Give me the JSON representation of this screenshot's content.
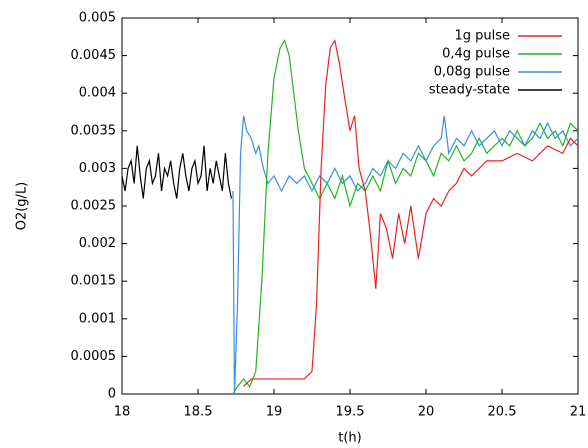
{
  "chart_data": {
    "type": "line",
    "xlabel": "t(h)",
    "ylabel": "O2(g/L)",
    "xlim": [
      18,
      21
    ],
    "xticks": [
      18,
      18.5,
      19,
      19.5,
      20,
      20.5,
      21
    ],
    "ylim": [
      0,
      0.005
    ],
    "yticks": [
      0,
      0.0005,
      0.001,
      0.0015,
      0.002,
      0.0025,
      0.003,
      0.0035,
      0.004,
      0.0045,
      0.005
    ],
    "legend": "top-right",
    "series": [
      {
        "name": "1g pulse",
        "color": "#e8231f",
        "x": [
          18.8,
          18.85,
          18.9,
          19,
          19.1,
          19.2,
          19.25,
          19.28,
          19.31,
          19.34,
          19.37,
          19.4,
          19.43,
          19.46,
          19.5,
          19.53,
          19.56,
          19.6,
          19.63,
          19.67,
          19.7,
          19.74,
          19.78,
          19.82,
          19.86,
          19.9,
          19.95,
          20,
          20.05,
          20.1,
          20.15,
          20.2,
          20.25,
          20.3,
          20.35,
          20.4,
          20.5,
          20.6,
          20.7,
          20.8,
          20.9,
          20.95,
          21
        ],
        "values": [
          0.0001,
          0.0002,
          0.0002,
          0.0002,
          0.0002,
          0.0002,
          0.0003,
          0.0012,
          0.003,
          0.0041,
          0.0046,
          0.0047,
          0.0044,
          0.004,
          0.0035,
          0.0037,
          0.003,
          0.0027,
          0.0022,
          0.0014,
          0.0024,
          0.0022,
          0.0018,
          0.0024,
          0.002,
          0.0025,
          0.0018,
          0.0024,
          0.0026,
          0.0025,
          0.0027,
          0.0028,
          0.003,
          0.0029,
          0.003,
          0.0031,
          0.0031,
          0.0032,
          0.0031,
          0.0033,
          0.0032,
          0.0034,
          0.0033
        ]
      },
      {
        "name": "0,4g pulse",
        "color": "#22b522",
        "x": [
          18.73,
          18.76,
          18.8,
          18.84,
          18.88,
          18.92,
          18.96,
          19,
          19.04,
          19.07,
          19.1,
          19.13,
          19.16,
          19.2,
          19.25,
          19.3,
          19.35,
          19.4,
          19.45,
          19.5,
          19.55,
          19.6,
          19.65,
          19.7,
          19.75,
          19.8,
          19.85,
          19.9,
          19.95,
          20,
          20.05,
          20.1,
          20.15,
          20.2,
          20.25,
          20.3,
          20.35,
          20.4,
          20.45,
          20.5,
          20.55,
          20.6,
          20.65,
          20.7,
          20.75,
          20.8,
          20.85,
          20.9,
          20.95,
          21
        ],
        "values": [
          0,
          0.0001,
          0.0002,
          0.0001,
          0.0003,
          0.0015,
          0.0032,
          0.0042,
          0.0046,
          0.0047,
          0.0045,
          0.004,
          0.0035,
          0.003,
          0.0028,
          0.0026,
          0.0028,
          0.0026,
          0.0029,
          0.0025,
          0.0028,
          0.0027,
          0.0029,
          0.0027,
          0.0031,
          0.0028,
          0.003,
          0.0029,
          0.0032,
          0.0031,
          0.0029,
          0.0032,
          0.0031,
          0.0033,
          0.0031,
          0.0032,
          0.0034,
          0.0032,
          0.0033,
          0.0034,
          0.0033,
          0.0035,
          0.0033,
          0.0034,
          0.0036,
          0.0034,
          0.0035,
          0.0033,
          0.0036,
          0.0035
        ]
      },
      {
        "name": "0,08g pulse",
        "color": "#3a8ee6",
        "x": [
          18.73,
          18.74,
          18.76,
          18.78,
          18.8,
          18.82,
          18.85,
          18.88,
          18.9,
          18.93,
          18.96,
          19,
          19.05,
          19.1,
          19.15,
          19.2,
          19.25,
          19.3,
          19.35,
          19.4,
          19.45,
          19.5,
          19.55,
          19.6,
          19.65,
          19.7,
          19.75,
          19.8,
          19.85,
          19.9,
          19.95,
          20,
          20.05,
          20.1,
          20.12,
          20.15,
          20.2,
          20.25,
          20.3,
          20.35,
          20.4,
          20.45,
          20.5,
          20.55,
          20.6,
          20.65,
          20.7,
          20.75,
          20.8,
          20.85,
          20.9,
          20.95,
          21
        ],
        "values": [
          0.0027,
          0,
          0.0012,
          0.0032,
          0.0037,
          0.0035,
          0.0034,
          0.0032,
          0.0033,
          0.003,
          0.0028,
          0.0029,
          0.0027,
          0.0029,
          0.0028,
          0.0029,
          0.0027,
          0.0029,
          0.0028,
          0.003,
          0.0028,
          0.0029,
          0.0027,
          0.0028,
          0.003,
          0.0029,
          0.0031,
          0.003,
          0.0032,
          0.0031,
          0.0033,
          0.0031,
          0.0033,
          0.0034,
          0.0037,
          0.0032,
          0.0034,
          0.0033,
          0.0035,
          0.0033,
          0.0034,
          0.0035,
          0.0033,
          0.0035,
          0.0034,
          0.0033,
          0.0035,
          0.0034,
          0.0036,
          0.0034,
          0.0035,
          0.0033,
          0.0034
        ]
      },
      {
        "name": "steady-state",
        "color": "#000000",
        "x": [
          18,
          18.02,
          18.04,
          18.06,
          18.08,
          18.1,
          18.12,
          18.14,
          18.16,
          18.18,
          18.2,
          18.22,
          18.24,
          18.26,
          18.28,
          18.3,
          18.32,
          18.34,
          18.36,
          18.38,
          18.4,
          18.42,
          18.44,
          18.46,
          18.48,
          18.5,
          18.52,
          18.54,
          18.56,
          18.58,
          18.6,
          18.62,
          18.64,
          18.66,
          18.68,
          18.7,
          18.72
        ],
        "values": [
          0.0029,
          0.0027,
          0.003,
          0.0031,
          0.0028,
          0.0033,
          0.0029,
          0.0026,
          0.003,
          0.0031,
          0.0028,
          0.0029,
          0.0032,
          0.0027,
          0.003,
          0.0029,
          0.0031,
          0.0028,
          0.0026,
          0.003,
          0.0032,
          0.0029,
          0.0027,
          0.003,
          0.0031,
          0.0028,
          0.0029,
          0.0033,
          0.0027,
          0.003,
          0.0028,
          0.0031,
          0.0029,
          0.0027,
          0.0032,
          0.0028,
          0.0026
        ]
      }
    ]
  }
}
